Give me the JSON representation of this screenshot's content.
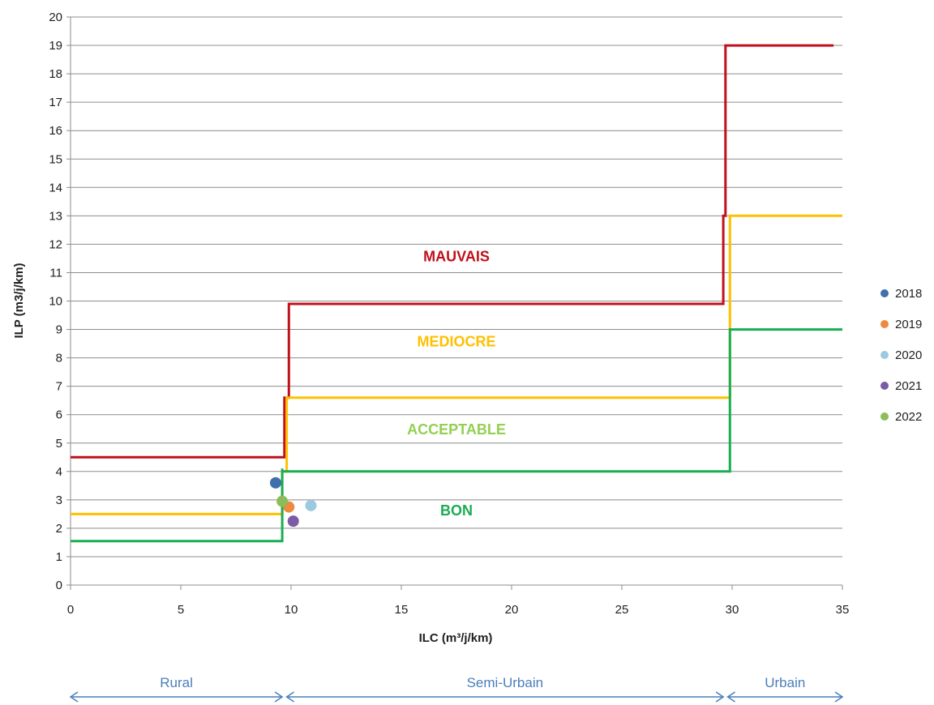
{
  "chart_data": {
    "type": "scatter",
    "xlabel": "ILC (m³/j/km)",
    "ylabel": "ILP (m3/j/km)",
    "xlim": [
      0,
      35
    ],
    "ylim": [
      0,
      20
    ],
    "x_ticks": [
      0,
      5,
      10,
      15,
      20,
      25,
      30,
      35
    ],
    "y_ticks": [
      0,
      1,
      2,
      3,
      4,
      5,
      6,
      7,
      8,
      9,
      10,
      11,
      12,
      13,
      14,
      15,
      16,
      17,
      18,
      19,
      20
    ],
    "grid": "horizontal",
    "legend_position": "right",
    "series": [
      {
        "name": "2018",
        "color": "#3f6fad",
        "x": [
          9.3
        ],
        "y": [
          3.6
        ]
      },
      {
        "name": "2019",
        "color": "#ed8a3f",
        "x": [
          9.9
        ],
        "y": [
          2.75
        ]
      },
      {
        "name": "2020",
        "color": "#9dc9df",
        "x": [
          10.9
        ],
        "y": [
          2.8
        ]
      },
      {
        "name": "2021",
        "color": "#7c5ba6",
        "x": [
          10.1
        ],
        "y": [
          2.25
        ]
      },
      {
        "name": "2022",
        "color": "#8cbd5a",
        "x": [
          9.6
        ],
        "y": [
          2.95
        ]
      }
    ],
    "threshold_lines": [
      {
        "color": "#c0101a",
        "points": [
          [
            0,
            4.5
          ],
          [
            9.7,
            4.5
          ],
          [
            9.7,
            6.6
          ],
          [
            9.9,
            6.6
          ],
          [
            9.9,
            9.9
          ],
          [
            29.6,
            9.9
          ],
          [
            29.6,
            13.0
          ],
          [
            29.7,
            13.0
          ],
          [
            29.7,
            19.0
          ],
          [
            34.6,
            19.0
          ]
        ]
      },
      {
        "color": "#ffc000",
        "points": [
          [
            0,
            2.5
          ],
          [
            9.6,
            2.5
          ],
          [
            9.6,
            4.0
          ],
          [
            9.8,
            4.0
          ],
          [
            9.8,
            6.6
          ],
          [
            29.9,
            6.6
          ],
          [
            29.9,
            10.0
          ],
          [
            29.9,
            13.0
          ],
          [
            35,
            13.0
          ]
        ]
      },
      {
        "color": "#1aad52",
        "points": [
          [
            0,
            1.55
          ],
          [
            9.6,
            1.55
          ],
          [
            9.6,
            4.1
          ],
          [
            9.6,
            4.0
          ],
          [
            29.9,
            4.0
          ],
          [
            29.9,
            9.0
          ],
          [
            35,
            9.0
          ]
        ]
      }
    ],
    "zone_labels": [
      {
        "text": "MAUVAIS",
        "x": 17.5,
        "y": 11.4,
        "color": "#c0101a"
      },
      {
        "text": "MEDIOCRE",
        "x": 17.5,
        "y": 8.4,
        "color": "#ffc000"
      },
      {
        "text": "ACCEPTABLE",
        "x": 17.5,
        "y": 5.3,
        "color": "#92d050"
      },
      {
        "text": "BON",
        "x": 17.5,
        "y": 2.45,
        "color": "#1aad52"
      }
    ],
    "regions": [
      {
        "label": "Rural",
        "from": 0,
        "to": 9.6
      },
      {
        "label": "Semi-Urbain",
        "from": 9.8,
        "to": 29.6
      },
      {
        "label": "Urbain",
        "from": 29.8,
        "to": 35
      }
    ]
  }
}
